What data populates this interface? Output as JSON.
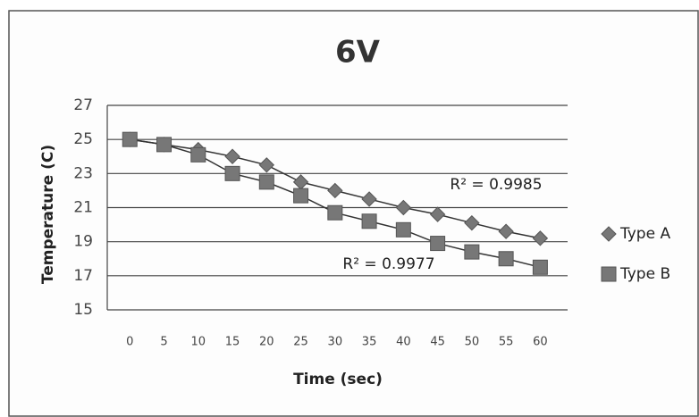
{
  "chart_data": {
    "type": "line",
    "title": "6V",
    "x_label": "Time (sec)",
    "y_label": "Temperature (C)",
    "x": [
      0,
      5,
      10,
      15,
      20,
      25,
      30,
      35,
      40,
      45,
      50,
      55,
      60
    ],
    "xlim": [
      -3.3,
      64
    ],
    "xticks": [
      0,
      5,
      10,
      15,
      20,
      25,
      30,
      35,
      40,
      45,
      50,
      55,
      60
    ],
    "ylim": [
      15,
      27
    ],
    "yticks": [
      15,
      17,
      19,
      21,
      23,
      25,
      27
    ],
    "grid": true,
    "legend": "right",
    "series": [
      {
        "name": "Type A",
        "color": "#777777",
        "marker": "diamond",
        "values": [
          25,
          24.7,
          24.4,
          24.0,
          23.5,
          22.5,
          22.0,
          21.5,
          21.0,
          20.6,
          20.1,
          19.6,
          19.2
        ]
      },
      {
        "name": "Type B",
        "color": "#777777",
        "marker": "square",
        "values": [
          25,
          24.7,
          24.1,
          23.0,
          22.5,
          21.7,
          20.7,
          20.2,
          19.7,
          18.9,
          18.4,
          18.0,
          17.5
        ]
      }
    ],
    "annotations": [
      "R² = 0.9985",
      "R² = 0.9977"
    ]
  }
}
